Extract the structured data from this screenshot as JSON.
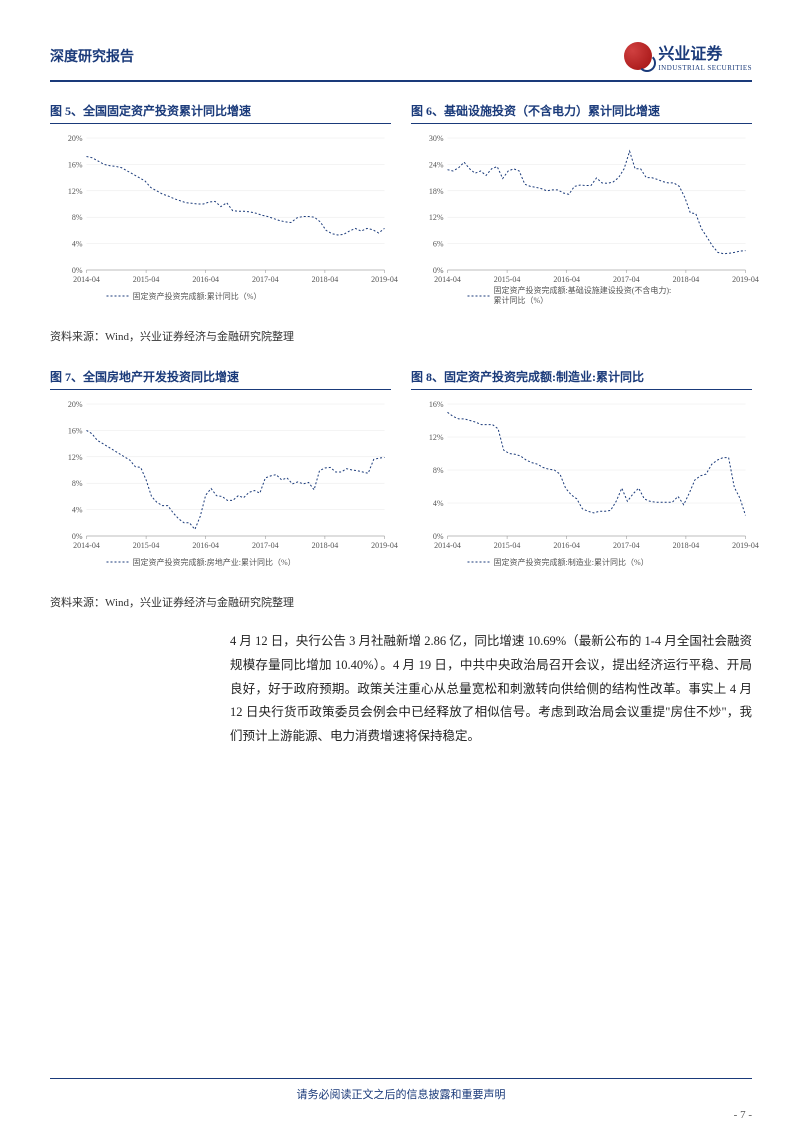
{
  "header": {
    "title": "深度研究报告",
    "logo_cn": "兴业证券",
    "logo_en": "INDUSTRIAL SECURITIES"
  },
  "charts": {
    "chart5": {
      "title": "图 5、全国固定资产投资累计同比增速",
      "type": "line",
      "x_labels": [
        "2014-04",
        "2015-04",
        "2016-04",
        "2017-04",
        "2018-04",
        "2019-04"
      ],
      "y_labels": [
        "0%",
        "4%",
        "8%",
        "12%",
        "16%",
        "20%"
      ],
      "ylim": [
        0,
        20
      ],
      "values": [
        17.2,
        17,
        16.5,
        16,
        15.8,
        15.7,
        15.5,
        15,
        14.5,
        14,
        13.5,
        12.5,
        12,
        11.5,
        11.2,
        10.8,
        10.5,
        10.2,
        10.1,
        10,
        10,
        10.3,
        10.4,
        9.6,
        10.2,
        9,
        8.9,
        8.9,
        8.8,
        8.6,
        8.3,
        8.1,
        7.8,
        7.5,
        7.3,
        7.2,
        7.9,
        8.1,
        8.1,
        8,
        7.3,
        6,
        5.5,
        5.3,
        5.4,
        5.9,
        6.3,
        5.9,
        6.3,
        6.1,
        5.6,
        6.3
      ],
      "legend": "固定资产投资完成额:累计同比（%）",
      "line_color": "#1a3a7a",
      "grid_color": "#e8e8e8",
      "bg_color": "#ffffff"
    },
    "chart6": {
      "title": "图 6、基础设施投资（不含电力）累计同比增速",
      "type": "line",
      "x_labels": [
        "2014-04",
        "2015-04",
        "2016-04",
        "2017-04",
        "2018-04",
        "2019-04"
      ],
      "y_labels": [
        "0%",
        "6%",
        "12%",
        "18%",
        "24%",
        "30%"
      ],
      "ylim": [
        0,
        30
      ],
      "values": [
        22.8,
        22.5,
        23.2,
        24.5,
        23,
        22,
        22.5,
        21.5,
        23,
        23.5,
        20.8,
        22.5,
        23,
        22.5,
        19.5,
        19,
        18.8,
        18.5,
        18,
        18.2,
        18.2,
        17.5,
        17.2,
        19,
        19.3,
        19.2,
        19.2,
        20.9,
        19.8,
        19.7,
        20,
        21,
        23,
        27,
        23,
        23,
        21,
        21,
        20.6,
        20.1,
        19.8,
        19.8,
        19,
        16.5,
        13,
        12.8,
        9.4,
        7.5,
        5.5,
        4,
        3.7,
        3.8,
        4,
        4.3,
        4.4
      ],
      "legend": "固定资产投资完成额:基础设施建设投资(不含电力):累计同比（%）",
      "line_color": "#1a3a7a",
      "grid_color": "#e8e8e8",
      "bg_color": "#ffffff"
    },
    "chart7": {
      "title": "图 7、全国房地产开发投资同比增速",
      "type": "line",
      "x_labels": [
        "2014-04",
        "2015-04",
        "2016-04",
        "2017-04",
        "2018-04",
        "2019-04"
      ],
      "y_labels": [
        "0%",
        "4%",
        "8%",
        "12%",
        "16%",
        "20%"
      ],
      "ylim": [
        0,
        20
      ],
      "values": [
        16,
        15.5,
        14.5,
        14,
        13.5,
        13,
        12.5,
        12,
        11.5,
        10.5,
        10.4,
        8.5,
        6,
        5.1,
        4.6,
        4.6,
        3.5,
        2.6,
        2,
        2,
        1,
        3,
        6.2,
        7.2,
        6.1,
        6,
        5.4,
        5.4,
        6.1,
        5.8,
        6.6,
        6.9,
        6.5,
        8.8,
        9.1,
        9.3,
        8.5,
        8.8,
        7.9,
        8.2,
        7.9,
        8.1,
        7,
        9.9,
        10.3,
        10.4,
        9.7,
        9.7,
        10.2,
        10,
        9.9,
        9.7,
        9.5,
        11.6,
        11.8,
        11.9
      ],
      "legend": "固定资产投资完成额:房地产业:累计同比（%）",
      "line_color": "#1a3a7a",
      "grid_color": "#e8e8e8",
      "bg_color": "#ffffff"
    },
    "chart8": {
      "title": "图 8、固定资产投资完成额:制造业:累计同比",
      "type": "line",
      "x_labels": [
        "2014-04",
        "2015-04",
        "2016-04",
        "2017-04",
        "2018-04",
        "2019-04"
      ],
      "y_labels": [
        "0%",
        "4%",
        "8%",
        "12%",
        "16%"
      ],
      "ylim": [
        0,
        16
      ],
      "values": [
        15,
        14.5,
        14.2,
        14.2,
        14,
        13.8,
        13.5,
        13.5,
        13.5,
        13,
        10.4,
        10,
        9.9,
        9.7,
        9.2,
        8.9,
        8.7,
        8.3,
        8.1,
        8,
        7.5,
        5.8,
        5,
        4.5,
        3.3,
        3,
        2.8,
        3,
        3,
        3.1,
        4.2,
        5.8,
        4.2,
        5.1,
        5.8,
        4.5,
        4.2,
        4.1,
        4.1,
        4.1,
        4.1,
        4.8,
        3.8,
        5.2,
        6.8,
        7.3,
        7.5,
        8.7,
        9.2,
        9.5,
        9.5,
        5.9,
        4.6,
        2.5
      ],
      "legend": "固定资产投资完成额:制造业:累计同比（%）",
      "line_color": "#1a3a7a",
      "grid_color": "#e8e8e8",
      "bg_color": "#ffffff"
    }
  },
  "source": "资料来源：Wind，兴业证券经济与金融研究院整理",
  "paragraph": "4 月 12 日，央行公告 3 月社融新增 2.86 亿，同比增速 10.69%（最新公布的 1-4 月全国社会融资规模存量同比增加 10.40%）。4 月 19 日，中共中央政治局召开会议，提出经济运行平稳、开局良好，好于政府预期。政策关注重心从总量宽松和刺激转向供给侧的结构性改革。事实上 4 月 12 日央行货币政策委员会例会中已经释放了相似信号。考虑到政治局会议重提\"房住不炒\"，我们预计上游能源、电力消费增速将保持稳定。",
  "footer": {
    "text": "请务必阅读正文之后的信息披露和重要声明",
    "page": "- 7 -"
  }
}
